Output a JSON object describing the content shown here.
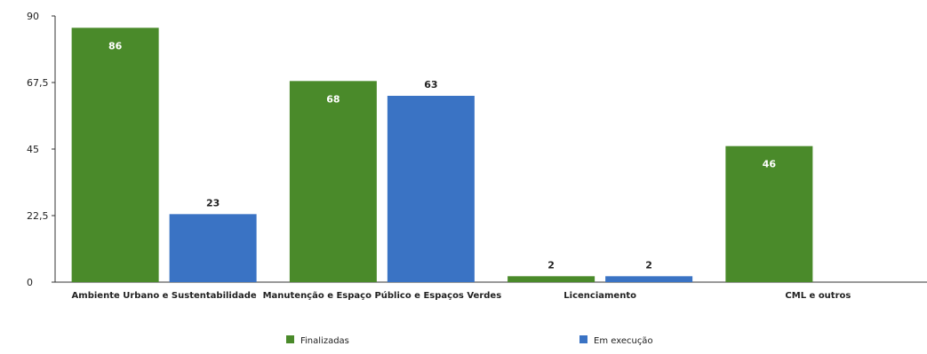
{
  "chart_data": {
    "type": "bar",
    "title": "",
    "xlabel": "",
    "ylabel": "",
    "ylim": [
      0,
      90
    ],
    "yticks": [
      "0",
      "22,5",
      "45",
      "67,5",
      "90"
    ],
    "grid": false,
    "legend_position": "bottom",
    "categories": [
      "Ambiente Urbano e Sustentabilidade",
      "Manutenção e Espaço Público e Espaços Verdes",
      "Licenciamento",
      "CML e outros"
    ],
    "series": [
      {
        "name": "Finalizadas",
        "color": "#4a8a2a",
        "values": [
          86,
          68,
          2,
          46
        ],
        "label_inside": [
          true,
          true,
          false,
          true
        ]
      },
      {
        "name": "Em execução",
        "color": "#3a73c4",
        "values": [
          23,
          63,
          2,
          null
        ],
        "label_inside": [
          false,
          false,
          false,
          false
        ]
      }
    ]
  }
}
